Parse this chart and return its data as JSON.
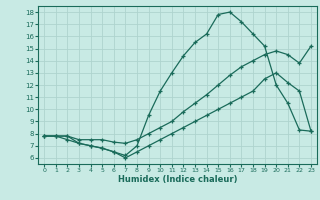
{
  "xlabel": "Humidex (Indice chaleur)",
  "bg_color": "#c8eae4",
  "grid_color": "#aed4ce",
  "line_color": "#1a6b5a",
  "xlim": [
    -0.5,
    23.5
  ],
  "ylim": [
    5.5,
    18.5
  ],
  "xticks": [
    0,
    1,
    2,
    3,
    4,
    5,
    6,
    7,
    8,
    9,
    10,
    11,
    12,
    13,
    14,
    15,
    16,
    17,
    18,
    19,
    20,
    21,
    22,
    23
  ],
  "yticks": [
    6,
    7,
    8,
    9,
    10,
    11,
    12,
    13,
    14,
    15,
    16,
    17,
    18
  ],
  "line1_x": [
    0,
    1,
    2,
    3,
    4,
    5,
    6,
    7,
    8,
    9,
    10,
    11,
    12,
    13,
    14,
    15,
    16,
    17,
    18,
    19,
    20,
    21,
    22,
    23
  ],
  "line1_y": [
    7.8,
    7.8,
    7.8,
    7.2,
    7.0,
    6.8,
    6.5,
    6.2,
    7.0,
    9.5,
    11.5,
    13.0,
    14.4,
    15.5,
    16.2,
    17.8,
    18.0,
    17.2,
    16.2,
    15.2,
    12.0,
    10.5,
    8.3,
    8.2
  ],
  "line2_x": [
    0,
    1,
    2,
    3,
    4,
    5,
    6,
    7,
    8,
    9,
    10,
    11,
    12,
    13,
    14,
    15,
    16,
    17,
    18,
    19,
    20,
    21,
    22,
    23
  ],
  "line2_y": [
    7.8,
    7.8,
    7.8,
    7.5,
    7.5,
    7.5,
    7.3,
    7.2,
    7.5,
    8.0,
    8.5,
    9.0,
    9.8,
    10.5,
    11.2,
    12.0,
    12.8,
    13.5,
    14.0,
    14.5,
    14.8,
    14.5,
    13.8,
    15.2
  ],
  "line3_x": [
    0,
    1,
    2,
    3,
    4,
    5,
    6,
    7,
    8,
    9,
    10,
    11,
    12,
    13,
    14,
    15,
    16,
    17,
    18,
    19,
    20,
    21,
    22,
    23
  ],
  "line3_y": [
    7.8,
    7.8,
    7.5,
    7.2,
    7.0,
    6.8,
    6.5,
    6.0,
    6.5,
    7.0,
    7.5,
    8.0,
    8.5,
    9.0,
    9.5,
    10.0,
    10.5,
    11.0,
    11.5,
    12.5,
    13.0,
    12.2,
    11.5,
    8.2
  ]
}
